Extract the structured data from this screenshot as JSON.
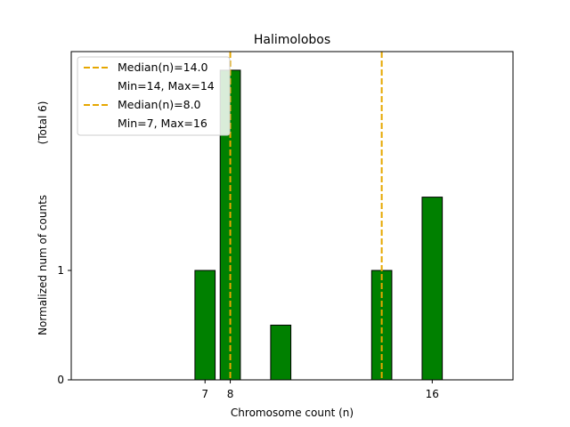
{
  "chart_data": {
    "type": "bar",
    "title": "Halimolobos",
    "xlabel": "Chromosome count (n)",
    "ylabel": "Normalized num of counts",
    "ylabel_suffix": "(Total 6)",
    "xlim": [
      1.7,
      19.2
    ],
    "ylim": [
      0,
      3.0
    ],
    "xticks": [
      7,
      8,
      16
    ],
    "yticks": [
      0,
      1
    ],
    "bar_width": 0.8,
    "bar_color": "#008000",
    "bar_edge_color": "#000000",
    "bars": [
      {
        "x": 7.0,
        "value": 1.0
      },
      {
        "x": 8.0,
        "value": 2.83
      },
      {
        "x": 10.0,
        "value": 0.5
      },
      {
        "x": 14.0,
        "value": 1.0
      },
      {
        "x": 16.0,
        "value": 1.67
      }
    ],
    "median_lines": [
      {
        "x": 8.0,
        "color": "#e6a700"
      },
      {
        "x": 14.0,
        "color": "#e6a700"
      }
    ],
    "legend": {
      "position": "top-left",
      "entries": [
        {
          "label": "Median(n)=14.0",
          "style": "dashed",
          "color": "#e6a700"
        },
        {
          "label": "Min=14, Max=14",
          "style": "none"
        },
        {
          "label": "Median(n)=8.0",
          "style": "dashed",
          "color": "#e6a700"
        },
        {
          "label": "Min=7, Max=16",
          "style": "none"
        }
      ]
    }
  }
}
